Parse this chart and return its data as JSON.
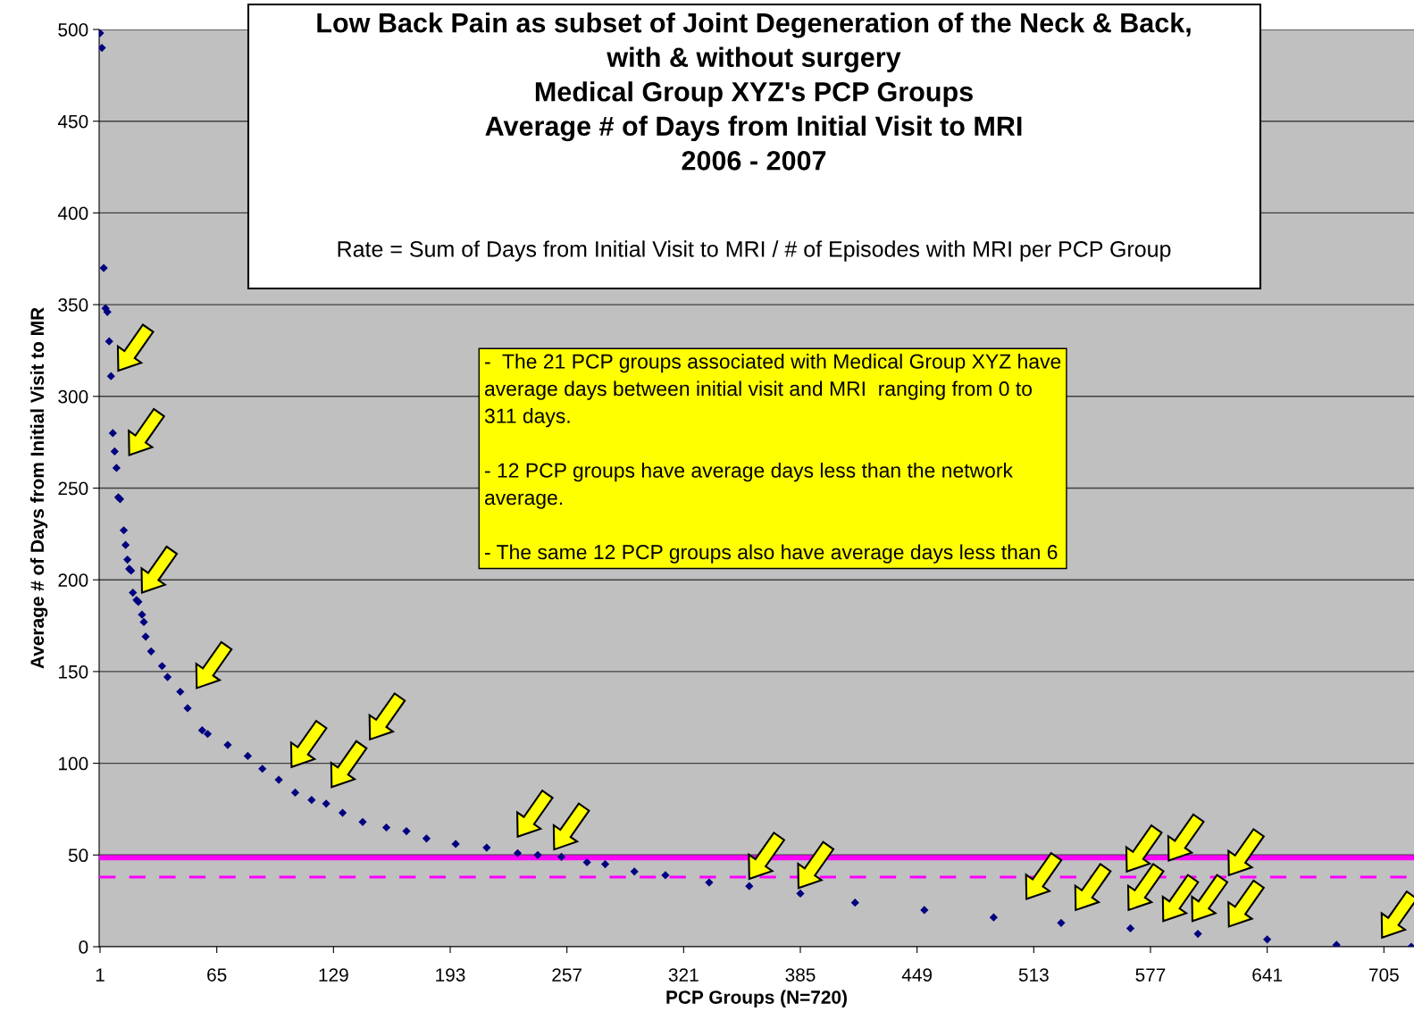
{
  "chart_data": {
    "type": "scatter",
    "title": "Low Back Pain as subset of Joint Degeneration of the Neck & Back,\nwith & without surgery\nMedical Group XYZ's PCP Groups\nAverage # of Days from Initial Visit to MRI\n2006 - 2007",
    "subtitle": "Rate = Sum of Days from Initial Visit to MRI / # of Episodes with MRI per PCP Group",
    "xlabel": "PCP Groups (N=720)",
    "ylabel": "Average # of Days from Initial Visit to MR",
    "annotations": [
      "-  The 21 PCP groups associated with Medical Group XYZ have\naverage days between initial visit and MRI  ranging from 0 to\n311 days.\n\n- 12 PCP groups have average days less than the network\naverage.\n\n- The same 12 PCP groups also have average days less than 6"
    ],
    "x": [
      1,
      2,
      3,
      4,
      5,
      6,
      7,
      8,
      9,
      10,
      11,
      12,
      14,
      15,
      16,
      17,
      18,
      19,
      21,
      22,
      24,
      25,
      26,
      29,
      35,
      38,
      45,
      49,
      57,
      60,
      71,
      82,
      90,
      99,
      108,
      117,
      125,
      134,
      145,
      158,
      169,
      180,
      196,
      213,
      230,
      241,
      254,
      268,
      278,
      294,
      311,
      335,
      357,
      385,
      415,
      453,
      491,
      528,
      566,
      603,
      641,
      679,
      720
    ],
    "series": [
      {
        "color": "#000080",
        "values": [
          498,
          490,
          370,
          348,
          346,
          330,
          311,
          280,
          270,
          261,
          245,
          244,
          227,
          219,
          211,
          206,
          205,
          193,
          189,
          188,
          181,
          177,
          169,
          161,
          153,
          147,
          139,
          130,
          118,
          116,
          110,
          104,
          97,
          91,
          84,
          80,
          78,
          73,
          68,
          65,
          63,
          59,
          56,
          54,
          51,
          50,
          49,
          46,
          45,
          41,
          39,
          35,
          33,
          29,
          24,
          20,
          16,
          13,
          10,
          7,
          4,
          1,
          0
        ]
      }
    ],
    "marker": "diamond",
    "xlim": [
      0.5,
      721.5
    ],
    "xticks": [
      1,
      65,
      129,
      193,
      257,
      321,
      385,
      449,
      513,
      577,
      641,
      705
    ],
    "ylim": [
      0,
      500
    ],
    "yticks": [
      0,
      50,
      100,
      150,
      200,
      250,
      300,
      350,
      400,
      450,
      500
    ],
    "grid": "y",
    "legend": false,
    "ref_lines": [
      {
        "axis": "y",
        "value": 48.5,
        "color": "#ff00ff",
        "line_style": "solid"
      },
      {
        "axis": "y",
        "value": 38,
        "color": "#ff00ff",
        "line_style": "dashed"
      }
    ]
  }
}
